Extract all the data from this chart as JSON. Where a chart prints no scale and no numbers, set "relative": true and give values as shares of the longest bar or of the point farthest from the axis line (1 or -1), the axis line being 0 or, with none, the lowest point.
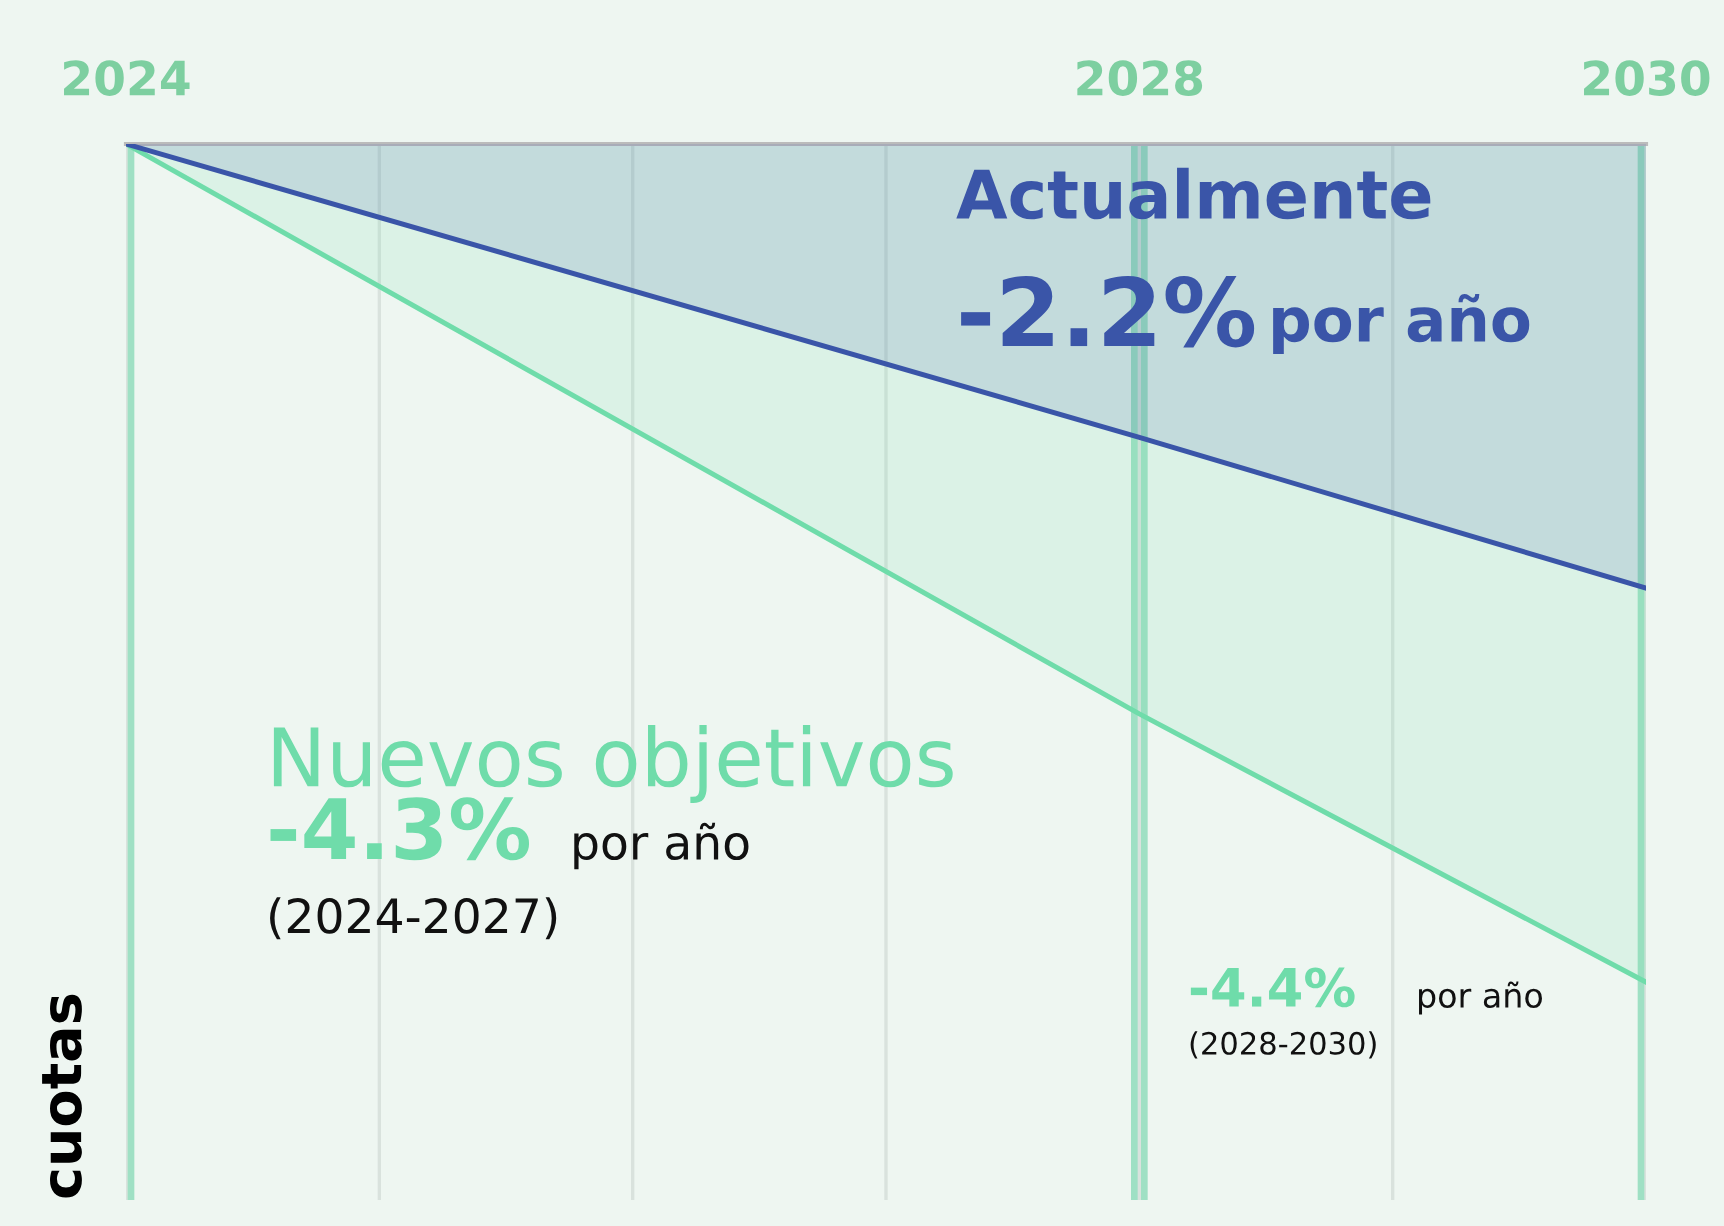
{
  "chart_data": {
    "type": "area",
    "relative": true,
    "ylabel": "cuotas",
    "x": [
      2024,
      2028,
      2030
    ],
    "xlim": [
      2024,
      2030
    ],
    "xticks": [
      2024,
      {
        "value": 2025,
        "label": null
      },
      {
        "value": 2026,
        "label": null
      },
      {
        "value": 2027,
        "label": null
      },
      2028,
      {
        "value": 2029,
        "label": null
      },
      2030
    ],
    "grid": "x",
    "ref_lines": [
      {
        "axis": "x",
        "value": 2024,
        "color": "#9fe0c4"
      },
      {
        "axis": "x",
        "value": 2028,
        "color": "#9fe0c4"
      },
      {
        "axis": "x",
        "value": 2030,
        "color": "#9fe0c4"
      }
    ],
    "series": [
      {
        "color": "#6fdcaa",
        "values": [
          0,
          -0.68,
          -1
        ]
      },
      {
        "color": "#3a55a8",
        "values": [
          0,
          -0.35,
          -0.53
        ]
      }
    ],
    "annotations": [
      "Actualmente",
      "-2.2%",
      "por año",
      "Nuevos objetivos",
      "-4.3%",
      "por año",
      "(2024-2027)",
      "-4.4%",
      "por año",
      "(2028-2030)"
    ]
  }
}
